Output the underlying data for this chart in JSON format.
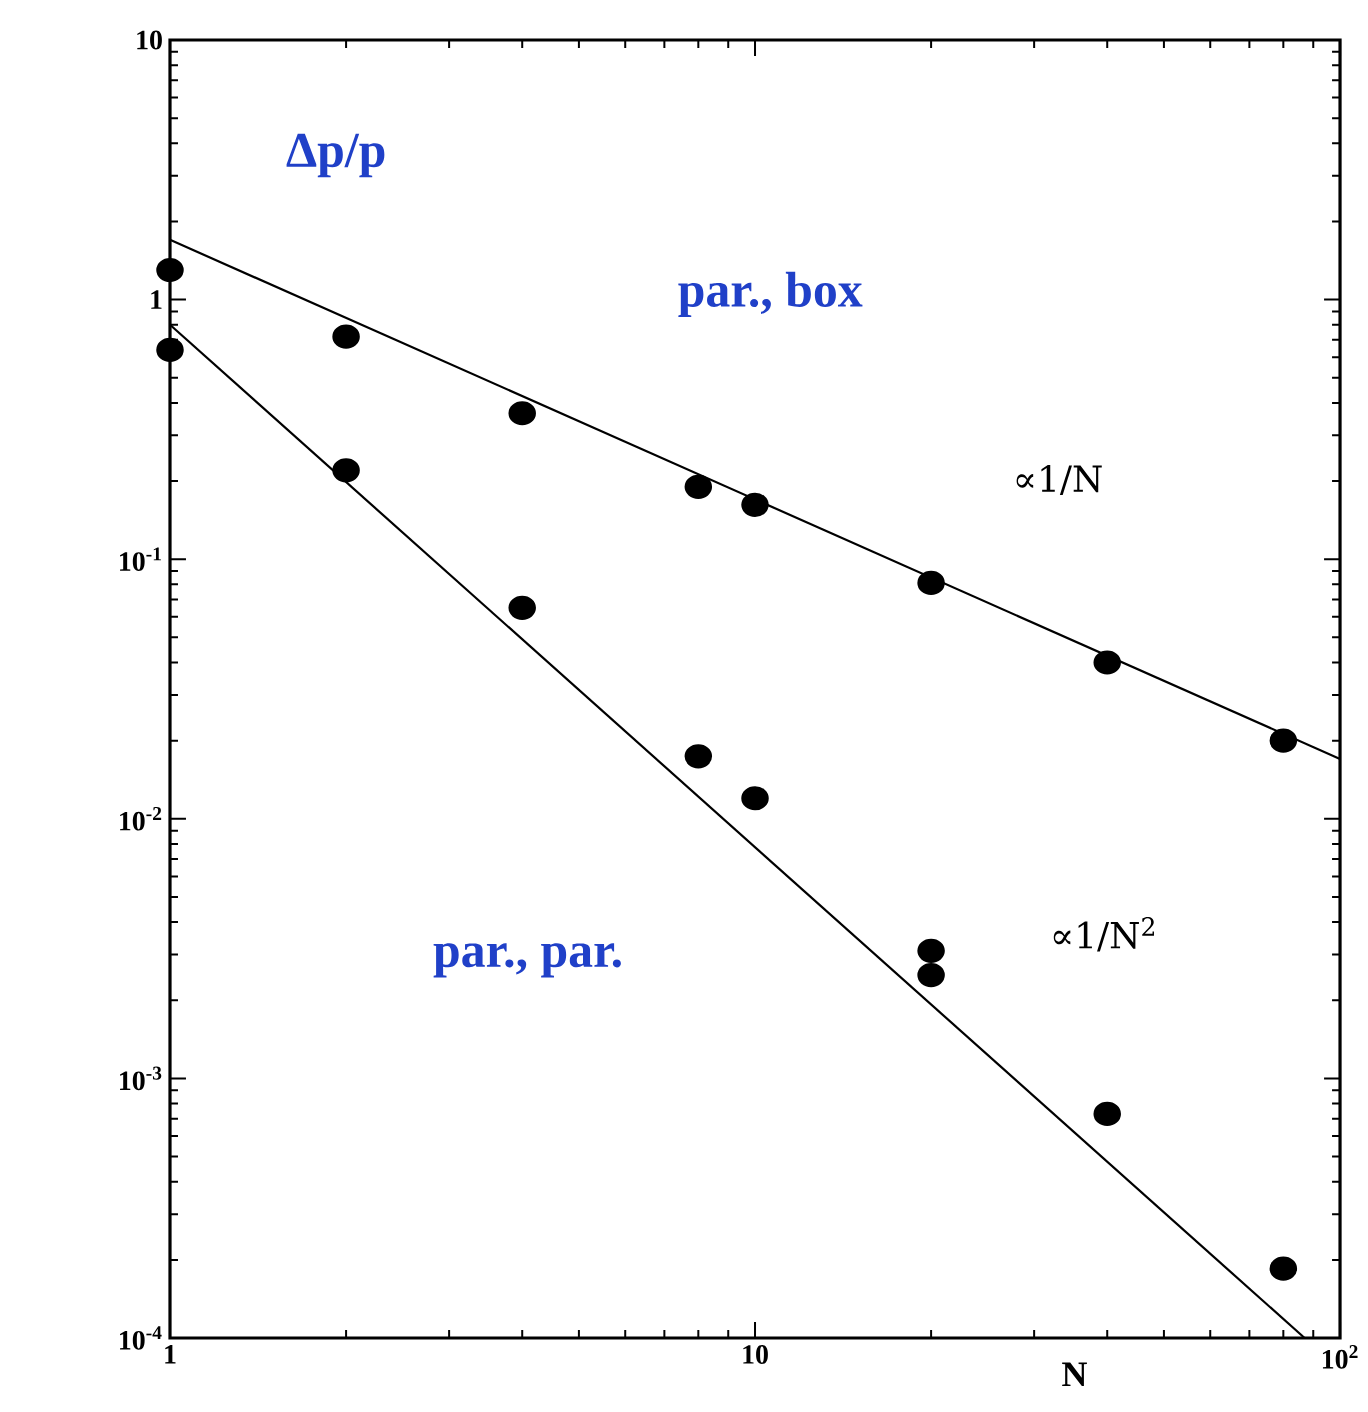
{
  "chart_data": {
    "type": "scatter",
    "xlabel": "N",
    "ylabel": "Δp/p",
    "log": "xy",
    "marker": "circle",
    "xlim": [
      1,
      100
    ],
    "ylim": [
      0.0001,
      10
    ],
    "xticks": [
      1,
      10,
      {
        "value": 100,
        "label": "10$^{2}$"
      }
    ],
    "yticks": [
      {
        "value": 0.0001,
        "label": "10$^{-4}$"
      },
      {
        "value": 0.001,
        "label": "10$^{-3}$"
      },
      {
        "value": 0.01,
        "label": "10$^{-2}$"
      },
      {
        "value": 0.1,
        "label": "10$^{-1}$"
      },
      1,
      10
    ],
    "annotations": [
      "par., box",
      "par., par.",
      "∝1/N",
      "∝1/N$^{2}$"
    ],
    "series": [
      {
        "type": "line",
        "marker": "none",
        "color": "#000000",
        "x": [
          1,
          100
        ],
        "values": [
          1.7,
          0.017
        ]
      },
      {
        "type": "line",
        "marker": "none",
        "color": "#000000",
        "x": [
          1,
          87
        ],
        "values": [
          0.8,
          0.0001
        ]
      },
      {
        "color": "#000000",
        "x": [
          1,
          2,
          4,
          8,
          10,
          20,
          40,
          80
        ],
        "values": [
          1.3,
          0.72,
          0.365,
          0.19,
          0.162,
          0.081,
          0.04,
          0.02
        ]
      },
      {
        "color": "#000000",
        "x": [
          1,
          2,
          4,
          8,
          10,
          20,
          20,
          40,
          80
        ],
        "values": [
          0.64,
          0.22,
          0.065,
          0.0174,
          0.012,
          0.0031,
          0.0025,
          0.00073,
          0.000185
        ]
      }
    ]
  }
}
